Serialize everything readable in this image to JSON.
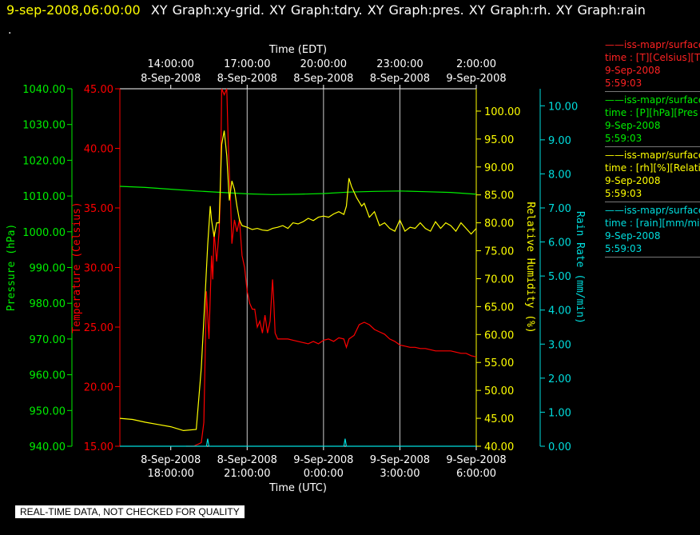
{
  "header": {
    "timestamp": "9-sep-2008,06:00:00",
    "tabs_text": "XY Graph:xy-grid.  XY Graph:tdry.  XY Graph:pres.  XY Graph:rh.  XY Graph:rain",
    "dot": "."
  },
  "colors": {
    "temperature": "#ff0000",
    "pressure": "#00ee00",
    "humidity": "#ffff00",
    "rain": "#00dddd",
    "axes": "#ffffff"
  },
  "legend": [
    {
      "line": "——iss-mapr/surface",
      "field": "time : [T][Celsius][T",
      "date": "9-Sep-2008",
      "time": "5:59:03",
      "color": "#ff2222"
    },
    {
      "line": "——iss-mapr/surface",
      "field": "time : [P][hPa][Pres",
      "date": "9-Sep-2008",
      "time": "5:59:03",
      "color": "#00ee00"
    },
    {
      "line": "——iss-mapr/surface",
      "field": "time : [rh][%][Relati",
      "date": "9-Sep-2008",
      "time": "5:59:03",
      "color": "#ffff00"
    },
    {
      "line": "——iss-mapr/surface",
      "field": "time : [rain][mm/min",
      "date": "9-Sep-2008",
      "time": "5:59:03",
      "color": "#00dddd"
    }
  ],
  "disclaimer": "REAL-TIME DATA, NOT CHECKED FOR QUALITY",
  "chart_data": {
    "type": "line",
    "x_range_utc_hours": [
      16,
      30
    ],
    "top_axis": {
      "title": "Time (EDT)",
      "ticks": [
        {
          "x": 18,
          "time": "14:00:00",
          "date": "8-Sep-2008"
        },
        {
          "x": 21,
          "time": "17:00:00",
          "date": "8-Sep-2008"
        },
        {
          "x": 24,
          "time": "20:00:00",
          "date": "8-Sep-2008"
        },
        {
          "x": 27,
          "time": "23:00:00",
          "date": "8-Sep-2008"
        },
        {
          "x": 30,
          "time": "2:00:00",
          "date": "9-Sep-2008"
        }
      ]
    },
    "bottom_axis": {
      "title": "Time (UTC)",
      "ticks": [
        {
          "x": 18,
          "date": "8-Sep-2008",
          "time": "18:00:00"
        },
        {
          "x": 21,
          "date": "8-Sep-2008",
          "time": "21:00:00"
        },
        {
          "x": 24,
          "date": "9-Sep-2008",
          "time": "0:00:00"
        },
        {
          "x": 27,
          "date": "9-Sep-2008",
          "time": "3:00:00"
        },
        {
          "x": 30,
          "date": "9-Sep-2008",
          "time": "6:00:00"
        }
      ]
    },
    "gridlines_x": [
      21,
      24,
      27
    ],
    "axes": {
      "pressure": {
        "label": "Pressure (hPa)",
        "range": [
          940,
          1040
        ],
        "ticks": [
          "940.00",
          "950.00",
          "960.00",
          "970.00",
          "980.00",
          "990.00",
          "1000.00",
          "1010.00",
          "1020.00",
          "1030.00",
          "1040.00"
        ]
      },
      "temperature": {
        "label": "Temperature (Celsius)",
        "range": [
          15,
          45
        ],
        "ticks": [
          "15.00",
          "20.00",
          "25.00",
          "30.00",
          "35.00",
          "40.00",
          "45.00"
        ]
      },
      "humidity": {
        "label": "Relative Humidity (%)",
        "range": [
          40,
          104
        ],
        "ticks": [
          "40.00",
          "45.00",
          "50.00",
          "55.00",
          "60.00",
          "65.00",
          "70.00",
          "75.00",
          "80.00",
          "85.00",
          "90.00",
          "95.00",
          "100.00"
        ]
      },
      "rain": {
        "label": "Rain Rate (mm/min)",
        "range": [
          0,
          10.5
        ],
        "ticks": [
          "0.00",
          "1.00",
          "2.00",
          "3.00",
          "4.00",
          "5.00",
          "6.00",
          "7.00",
          "8.00",
          "9.00",
          "10.00"
        ]
      }
    },
    "series": [
      {
        "name": "Temperature",
        "axis": "temperature",
        "points": [
          [
            18.6,
            15.0
          ],
          [
            18.9,
            15.0
          ],
          [
            19.0,
            15.1
          ],
          [
            19.1,
            15.2
          ],
          [
            19.2,
            15.3
          ],
          [
            19.3,
            17.0
          ],
          [
            19.4,
            28.0
          ],
          [
            19.5,
            24.0
          ],
          [
            19.6,
            31.0
          ],
          [
            19.65,
            29.0
          ],
          [
            19.7,
            33.0
          ],
          [
            19.8,
            30.5
          ],
          [
            19.9,
            33.0
          ],
          [
            19.95,
            36.0
          ],
          [
            20.0,
            45.5
          ],
          [
            20.1,
            44.5
          ],
          [
            20.2,
            45.0
          ],
          [
            20.25,
            41.0
          ],
          [
            20.3,
            38.0
          ],
          [
            20.35,
            35.5
          ],
          [
            20.4,
            32.0
          ],
          [
            20.5,
            34.0
          ],
          [
            20.6,
            33.0
          ],
          [
            20.7,
            34.0
          ],
          [
            20.8,
            31.0
          ],
          [
            20.9,
            30.0
          ],
          [
            21.0,
            28.0
          ],
          [
            21.1,
            27.0
          ],
          [
            21.2,
            26.5
          ],
          [
            21.3,
            26.5
          ],
          [
            21.4,
            25.0
          ],
          [
            21.5,
            25.5
          ],
          [
            21.6,
            24.5
          ],
          [
            21.7,
            26.0
          ],
          [
            21.8,
            24.5
          ],
          [
            21.9,
            25.5
          ],
          [
            22.0,
            29.0
          ],
          [
            22.05,
            27.0
          ],
          [
            22.1,
            24.5
          ],
          [
            22.2,
            24.0
          ],
          [
            22.4,
            24.0
          ],
          [
            22.6,
            24.0
          ],
          [
            22.8,
            23.9
          ],
          [
            23.0,
            23.8
          ],
          [
            23.2,
            23.7
          ],
          [
            23.4,
            23.6
          ],
          [
            23.6,
            23.8
          ],
          [
            23.8,
            23.6
          ],
          [
            24.0,
            23.9
          ],
          [
            24.2,
            24.0
          ],
          [
            24.4,
            23.8
          ],
          [
            24.6,
            24.1
          ],
          [
            24.8,
            24.0
          ],
          [
            24.9,
            23.3
          ],
          [
            25.0,
            24.0
          ],
          [
            25.2,
            24.3
          ],
          [
            25.4,
            25.2
          ],
          [
            25.6,
            25.4
          ],
          [
            25.8,
            25.2
          ],
          [
            26.0,
            24.8
          ],
          [
            26.2,
            24.6
          ],
          [
            26.4,
            24.4
          ],
          [
            26.6,
            24.0
          ],
          [
            26.8,
            23.8
          ],
          [
            27.0,
            23.5
          ],
          [
            27.2,
            23.4
          ],
          [
            27.4,
            23.3
          ],
          [
            27.6,
            23.3
          ],
          [
            27.8,
            23.2
          ],
          [
            28.0,
            23.2
          ],
          [
            28.2,
            23.1
          ],
          [
            28.4,
            23.0
          ],
          [
            28.6,
            23.0
          ],
          [
            28.8,
            23.0
          ],
          [
            29.0,
            23.0
          ],
          [
            29.2,
            22.9
          ],
          [
            29.4,
            22.8
          ],
          [
            29.6,
            22.8
          ],
          [
            29.8,
            22.6
          ],
          [
            30.0,
            22.5
          ]
        ]
      },
      {
        "name": "Pressure",
        "axis": "pressure",
        "points": [
          [
            16.0,
            1012.7
          ],
          [
            17.0,
            1012.4
          ],
          [
            18.0,
            1011.9
          ],
          [
            19.0,
            1011.4
          ],
          [
            20.0,
            1011.0
          ],
          [
            21.0,
            1010.6
          ],
          [
            22.0,
            1010.4
          ],
          [
            23.0,
            1010.5
          ],
          [
            24.0,
            1010.7
          ],
          [
            25.0,
            1011.1
          ],
          [
            26.0,
            1011.3
          ],
          [
            27.0,
            1011.4
          ],
          [
            28.0,
            1011.2
          ],
          [
            29.0,
            1011.0
          ],
          [
            30.0,
            1010.5
          ]
        ]
      },
      {
        "name": "Relative Humidity",
        "axis": "humidity",
        "points": [
          [
            16.0,
            45.0
          ],
          [
            16.5,
            44.8
          ],
          [
            17.0,
            44.3
          ],
          [
            17.5,
            43.9
          ],
          [
            18.0,
            43.5
          ],
          [
            18.5,
            42.8
          ],
          [
            19.0,
            43.0
          ],
          [
            19.2,
            54.0
          ],
          [
            19.35,
            67.0
          ],
          [
            19.45,
            76.0
          ],
          [
            19.55,
            83.0
          ],
          [
            19.6,
            80.5
          ],
          [
            19.7,
            77.5
          ],
          [
            19.8,
            80.0
          ],
          [
            19.9,
            80.0
          ],
          [
            20.0,
            94.0
          ],
          [
            20.1,
            96.5
          ],
          [
            20.2,
            92.0
          ],
          [
            20.3,
            84.0
          ],
          [
            20.4,
            87.5
          ],
          [
            20.5,
            86.0
          ],
          [
            20.6,
            83.0
          ],
          [
            20.7,
            80.5
          ],
          [
            20.8,
            79.5
          ],
          [
            21.0,
            79.2
          ],
          [
            21.2,
            78.8
          ],
          [
            21.4,
            79.0
          ],
          [
            21.6,
            78.7
          ],
          [
            21.8,
            78.6
          ],
          [
            22.0,
            79.0
          ],
          [
            22.2,
            79.2
          ],
          [
            22.4,
            79.5
          ],
          [
            22.6,
            79.0
          ],
          [
            22.8,
            80.0
          ],
          [
            23.0,
            79.8
          ],
          [
            23.2,
            80.2
          ],
          [
            23.4,
            80.8
          ],
          [
            23.6,
            80.4
          ],
          [
            23.8,
            81.0
          ],
          [
            24.0,
            81.2
          ],
          [
            24.2,
            81.0
          ],
          [
            24.4,
            81.6
          ],
          [
            24.6,
            82.0
          ],
          [
            24.8,
            81.5
          ],
          [
            24.9,
            83.0
          ],
          [
            25.0,
            88.0
          ],
          [
            25.1,
            86.5
          ],
          [
            25.3,
            84.5
          ],
          [
            25.5,
            83.0
          ],
          [
            25.6,
            83.5
          ],
          [
            25.8,
            81.0
          ],
          [
            26.0,
            82.0
          ],
          [
            26.2,
            79.5
          ],
          [
            26.4,
            80.0
          ],
          [
            26.6,
            79.0
          ],
          [
            26.8,
            78.5
          ],
          [
            27.0,
            80.5
          ],
          [
            27.2,
            78.5
          ],
          [
            27.4,
            79.2
          ],
          [
            27.6,
            79.0
          ],
          [
            27.8,
            80.0
          ],
          [
            28.0,
            79.0
          ],
          [
            28.2,
            78.5
          ],
          [
            28.4,
            80.2
          ],
          [
            28.6,
            79.0
          ],
          [
            28.8,
            80.0
          ],
          [
            29.0,
            79.5
          ],
          [
            29.2,
            78.5
          ],
          [
            29.4,
            80.0
          ],
          [
            29.6,
            79.0
          ],
          [
            29.8,
            78.0
          ],
          [
            30.0,
            79.0
          ]
        ]
      },
      {
        "name": "Rain Rate",
        "axis": "rain",
        "points": [
          [
            16.0,
            0.0
          ],
          [
            19.4,
            0.0
          ],
          [
            19.45,
            0.22
          ],
          [
            19.5,
            0.0
          ],
          [
            24.8,
            0.0
          ],
          [
            24.85,
            0.22
          ],
          [
            24.9,
            0.0
          ],
          [
            30.0,
            0.0
          ]
        ]
      }
    ]
  }
}
